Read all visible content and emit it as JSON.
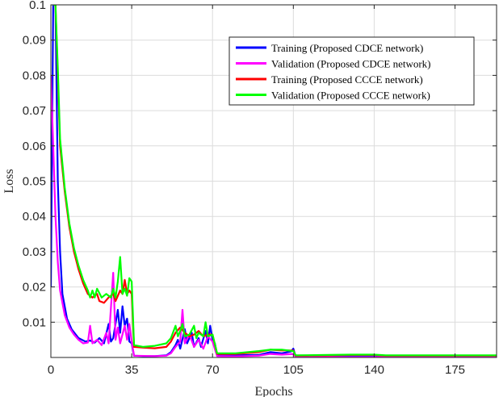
{
  "chart_data": {
    "type": "line",
    "xlabel": "Epochs",
    "ylabel": "Loss",
    "xlim": [
      0,
      193
    ],
    "ylim": [
      0,
      0.1
    ],
    "xticks": [
      0,
      35,
      70,
      105,
      140,
      175
    ],
    "xtick_labels": [
      "0",
      "35",
      "70",
      "105",
      "140",
      "175"
    ],
    "yticks": [
      0.01,
      0.02,
      0.03,
      0.04,
      0.05,
      0.06,
      0.07,
      0.08,
      0.09,
      0.1
    ],
    "ytick_labels": [
      "0.01",
      "0.02",
      "0.03",
      "0.04",
      "0.05",
      "0.06",
      "0.07",
      "0.08",
      "0.09",
      "0.1"
    ],
    "grid": true,
    "legend_position": "top-right",
    "series": [
      {
        "name": "Training (Proposed CDCE network)",
        "color": "#0000ff",
        "points": [
          [
            0,
            0.02
          ],
          [
            1,
            0.1
          ],
          [
            2,
            0.1
          ],
          [
            3,
            0.05
          ],
          [
            4,
            0.03
          ],
          [
            5,
            0.018
          ],
          [
            7,
            0.011
          ],
          [
            9,
            0.008
          ],
          [
            12,
            0.0055
          ],
          [
            15,
            0.0045
          ],
          [
            17,
            0.0048
          ],
          [
            19,
            0.0042
          ],
          [
            21,
            0.0055
          ],
          [
            23,
            0.004
          ],
          [
            25,
            0.0095
          ],
          [
            26,
            0.0045
          ],
          [
            27,
            0.0055
          ],
          [
            29,
            0.0135
          ],
          [
            30,
            0.007
          ],
          [
            31,
            0.0145
          ],
          [
            32,
            0.009
          ],
          [
            33,
            0.011
          ],
          [
            34,
            0.0045
          ],
          [
            35,
            0.004
          ],
          [
            36,
            0.0005
          ],
          [
            40,
            0.0004
          ],
          [
            45,
            0.0004
          ],
          [
            50,
            0.0006
          ],
          [
            52,
            0.0015
          ],
          [
            54,
            0.0035
          ],
          [
            55,
            0.005
          ],
          [
            56,
            0.0025
          ],
          [
            58,
            0.008
          ],
          [
            59,
            0.004
          ],
          [
            61,
            0.007
          ],
          [
            62,
            0.003
          ],
          [
            64,
            0.0055
          ],
          [
            65,
            0.003
          ],
          [
            67,
            0.0075
          ],
          [
            68,
            0.004
          ],
          [
            69,
            0.009
          ],
          [
            70,
            0.005
          ],
          [
            71,
            0.004
          ],
          [
            72,
            0.0007
          ],
          [
            80,
            0.0006
          ],
          [
            90,
            0.0007
          ],
          [
            95,
            0.0015
          ],
          [
            100,
            0.0012
          ],
          [
            104,
            0.0017
          ],
          [
            105,
            0.0025
          ],
          [
            106,
            0.0002
          ],
          [
            120,
            0.0002
          ],
          [
            140,
            0.0002
          ],
          [
            160,
            0.0002
          ],
          [
            193,
            0.0002
          ]
        ]
      },
      {
        "name": "Validation (Proposed CDCE network)",
        "color": "#ff00ff",
        "points": [
          [
            0,
            0.08
          ],
          [
            1,
            0.06
          ],
          [
            2,
            0.04
          ],
          [
            3,
            0.027
          ],
          [
            4,
            0.019
          ],
          [
            6,
            0.012
          ],
          [
            8,
            0.0085
          ],
          [
            10,
            0.0065
          ],
          [
            12,
            0.005
          ],
          [
            14,
            0.004
          ],
          [
            16,
            0.0042
          ],
          [
            17,
            0.009
          ],
          [
            18,
            0.004
          ],
          [
            20,
            0.005
          ],
          [
            22,
            0.0035
          ],
          [
            24,
            0.007
          ],
          [
            25,
            0.004
          ],
          [
            27,
            0.024
          ],
          [
            28,
            0.005
          ],
          [
            29,
            0.0085
          ],
          [
            30,
            0.004
          ],
          [
            32,
            0.009
          ],
          [
            33,
            0.005
          ],
          [
            34,
            0.0095
          ],
          [
            35,
            0.0045
          ],
          [
            36,
            0.0005
          ],
          [
            45,
            0.0004
          ],
          [
            50,
            0.0005
          ],
          [
            52,
            0.0012
          ],
          [
            54,
            0.003
          ],
          [
            56,
            0.0045
          ],
          [
            57,
            0.0135
          ],
          [
            58,
            0.004
          ],
          [
            60,
            0.0065
          ],
          [
            62,
            0.003
          ],
          [
            64,
            0.005
          ],
          [
            66,
            0.0025
          ],
          [
            68,
            0.006
          ],
          [
            70,
            0.0045
          ],
          [
            72,
            0.0004
          ],
          [
            80,
            0.0003
          ],
          [
            90,
            0.0005
          ],
          [
            95,
            0.001
          ],
          [
            100,
            0.0008
          ],
          [
            105,
            0.001
          ],
          [
            106,
            0.0001
          ],
          [
            140,
            0.0001
          ],
          [
            193,
            0.0001
          ]
        ]
      },
      {
        "name": "Training (Proposed CCCE network)",
        "color": "#ff0000",
        "points": [
          [
            1,
            0.1
          ],
          [
            2,
            0.1
          ],
          [
            3,
            0.08
          ],
          [
            4,
            0.06
          ],
          [
            6,
            0.047
          ],
          [
            8,
            0.037
          ],
          [
            10,
            0.03
          ],
          [
            12,
            0.025
          ],
          [
            14,
            0.021
          ],
          [
            16,
            0.018
          ],
          [
            18,
            0.017
          ],
          [
            20,
            0.018
          ],
          [
            21,
            0.016
          ],
          [
            23,
            0.0155
          ],
          [
            25,
            0.017
          ],
          [
            27,
            0.018
          ],
          [
            28,
            0.016
          ],
          [
            30,
            0.019
          ],
          [
            31,
            0.018
          ],
          [
            32,
            0.022
          ],
          [
            33,
            0.018
          ],
          [
            34,
            0.019
          ],
          [
            35,
            0.018
          ],
          [
            36,
            0.003
          ],
          [
            40,
            0.0028
          ],
          [
            45,
            0.0026
          ],
          [
            50,
            0.003
          ],
          [
            52,
            0.0045
          ],
          [
            54,
            0.007
          ],
          [
            56,
            0.0085
          ],
          [
            58,
            0.007
          ],
          [
            60,
            0.006
          ],
          [
            62,
            0.0065
          ],
          [
            64,
            0.0075
          ],
          [
            66,
            0.006
          ],
          [
            68,
            0.0065
          ],
          [
            70,
            0.0065
          ],
          [
            72,
            0.001
          ],
          [
            80,
            0.001
          ],
          [
            90,
            0.0015
          ],
          [
            95,
            0.0022
          ],
          [
            100,
            0.002
          ],
          [
            105,
            0.002
          ],
          [
            106,
            0.0005
          ],
          [
            120,
            0.0006
          ],
          [
            130,
            0.0007
          ],
          [
            140,
            0.0007
          ],
          [
            145,
            0.0005
          ],
          [
            193,
            0.0005
          ]
        ]
      },
      {
        "name": "Validation (Proposed CCCE network)",
        "color": "#00ff00",
        "points": [
          [
            1,
            0.1
          ],
          [
            2,
            0.1
          ],
          [
            3,
            0.082
          ],
          [
            4,
            0.062
          ],
          [
            6,
            0.048
          ],
          [
            8,
            0.038
          ],
          [
            10,
            0.031
          ],
          [
            12,
            0.026
          ],
          [
            14,
            0.022
          ],
          [
            16,
            0.019
          ],
          [
            17,
            0.017
          ],
          [
            18,
            0.019
          ],
          [
            19,
            0.017
          ],
          [
            20,
            0.0195
          ],
          [
            22,
            0.017
          ],
          [
            24,
            0.018
          ],
          [
            26,
            0.017
          ],
          [
            27,
            0.0195
          ],
          [
            28,
            0.017
          ],
          [
            29,
            0.0215
          ],
          [
            30,
            0.0285
          ],
          [
            31,
            0.018
          ],
          [
            32,
            0.0195
          ],
          [
            33,
            0.0175
          ],
          [
            34,
            0.0225
          ],
          [
            35,
            0.0215
          ],
          [
            36,
            0.0035
          ],
          [
            40,
            0.003
          ],
          [
            45,
            0.0033
          ],
          [
            50,
            0.004
          ],
          [
            52,
            0.0055
          ],
          [
            54,
            0.009
          ],
          [
            55,
            0.006
          ],
          [
            56,
            0.0075
          ],
          [
            57,
            0.0095
          ],
          [
            58,
            0.006
          ],
          [
            60,
            0.0065
          ],
          [
            62,
            0.009
          ],
          [
            63,
            0.0055
          ],
          [
            64,
            0.007
          ],
          [
            66,
            0.006
          ],
          [
            67,
            0.01
          ],
          [
            68,
            0.006
          ],
          [
            70,
            0.0065
          ],
          [
            72,
            0.0012
          ],
          [
            80,
            0.0012
          ],
          [
            90,
            0.0018
          ],
          [
            95,
            0.0022
          ],
          [
            100,
            0.0022
          ],
          [
            105,
            0.0018
          ],
          [
            106,
            0.0006
          ],
          [
            120,
            0.0007
          ],
          [
            130,
            0.0008
          ],
          [
            140,
            0.0008
          ],
          [
            145,
            0.0006
          ],
          [
            193,
            0.0006
          ]
        ]
      }
    ]
  }
}
